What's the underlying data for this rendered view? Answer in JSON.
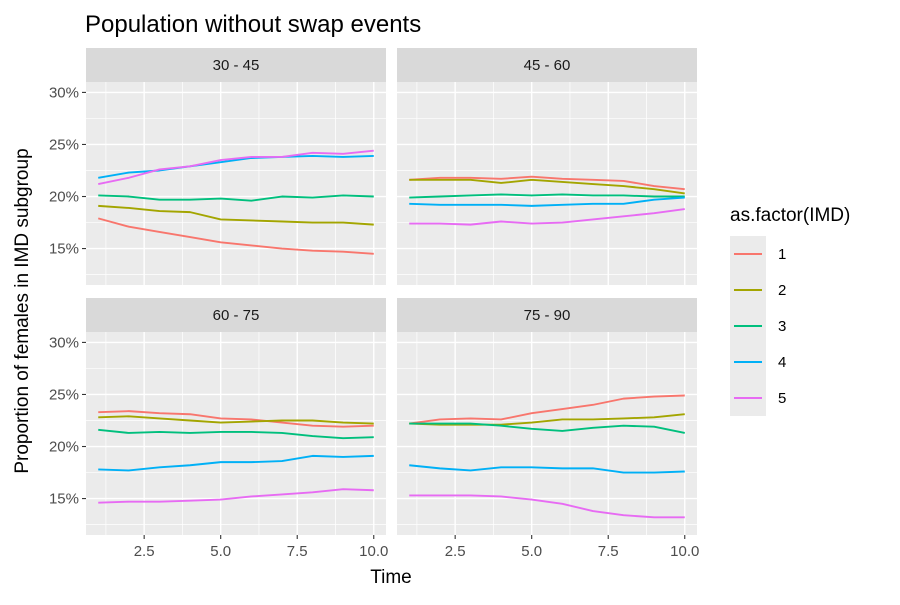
{
  "chart_data": {
    "type": "line",
    "title": "Population without swap events",
    "xlabel": "Time",
    "ylabel": "Proportion of females in IMD subgroup",
    "xlim": [
      0.6,
      10.4
    ],
    "ylim": [
      0.115,
      0.31
    ],
    "x_ticks": [
      2.5,
      5.0,
      7.5,
      10.0
    ],
    "x_tick_labels": [
      "2.5",
      "5.0",
      "7.5",
      "10.0"
    ],
    "y_ticks": [
      0.15,
      0.2,
      0.25,
      0.3
    ],
    "y_tick_labels": [
      "15%",
      "20%",
      "25%",
      "30%"
    ],
    "grid": true,
    "legend": {
      "title": "as.factor(IMD)",
      "position": "right",
      "entries": [
        {
          "label": "1",
          "color": "#F8766D"
        },
        {
          "label": "2",
          "color": "#A3A500"
        },
        {
          "label": "3",
          "color": "#00BF7D"
        },
        {
          "label": "4",
          "color": "#00B0F6"
        },
        {
          "label": "5",
          "color": "#E76BF3"
        }
      ]
    },
    "x": [
      1,
      2,
      3,
      4,
      5,
      6,
      7,
      8,
      9,
      10
    ],
    "panels": [
      {
        "label": "30 - 45",
        "series": [
          {
            "name": "1",
            "values": [
              0.179,
              0.171,
              0.166,
              0.161,
              0.156,
              0.153,
              0.15,
              0.148,
              0.147,
              0.145
            ]
          },
          {
            "name": "2",
            "values": [
              0.191,
              0.189,
              0.186,
              0.185,
              0.178,
              0.177,
              0.176,
              0.175,
              0.175,
              0.173
            ]
          },
          {
            "name": "3",
            "values": [
              0.201,
              0.2,
              0.197,
              0.197,
              0.198,
              0.196,
              0.2,
              0.199,
              0.201,
              0.2
            ]
          },
          {
            "name": "4",
            "values": [
              0.218,
              0.223,
              0.225,
              0.229,
              0.233,
              0.237,
              0.238,
              0.239,
              0.238,
              0.239
            ]
          },
          {
            "name": "5",
            "values": [
              0.212,
              0.218,
              0.226,
              0.229,
              0.235,
              0.238,
              0.238,
              0.242,
              0.241,
              0.244
            ]
          }
        ]
      },
      {
        "label": "45 - 60",
        "series": [
          {
            "name": "1",
            "values": [
              0.216,
              0.218,
              0.218,
              0.217,
              0.219,
              0.217,
              0.216,
              0.215,
              0.21,
              0.207
            ]
          },
          {
            "name": "2",
            "values": [
              0.216,
              0.216,
              0.216,
              0.213,
              0.216,
              0.214,
              0.212,
              0.21,
              0.207,
              0.203
            ]
          },
          {
            "name": "3",
            "values": [
              0.199,
              0.2,
              0.201,
              0.202,
              0.201,
              0.202,
              0.201,
              0.201,
              0.2,
              0.2
            ]
          },
          {
            "name": "4",
            "values": [
              0.193,
              0.192,
              0.192,
              0.192,
              0.191,
              0.192,
              0.193,
              0.193,
              0.197,
              0.199
            ]
          },
          {
            "name": "5",
            "values": [
              0.174,
              0.174,
              0.173,
              0.176,
              0.174,
              0.175,
              0.178,
              0.181,
              0.184,
              0.188
            ]
          }
        ]
      },
      {
        "label": "60 - 75",
        "series": [
          {
            "name": "1",
            "values": [
              0.233,
              0.234,
              0.232,
              0.231,
              0.227,
              0.226,
              0.223,
              0.22,
              0.219,
              0.22
            ]
          },
          {
            "name": "2",
            "values": [
              0.228,
              0.229,
              0.227,
              0.225,
              0.223,
              0.224,
              0.225,
              0.225,
              0.223,
              0.222
            ]
          },
          {
            "name": "3",
            "values": [
              0.216,
              0.213,
              0.214,
              0.213,
              0.214,
              0.214,
              0.213,
              0.21,
              0.208,
              0.209
            ]
          },
          {
            "name": "4",
            "values": [
              0.178,
              0.177,
              0.18,
              0.182,
              0.185,
              0.185,
              0.186,
              0.191,
              0.19,
              0.191
            ]
          },
          {
            "name": "5",
            "values": [
              0.146,
              0.147,
              0.147,
              0.148,
              0.149,
              0.152,
              0.154,
              0.156,
              0.159,
              0.158
            ]
          }
        ]
      },
      {
        "label": "75 - 90",
        "series": [
          {
            "name": "1",
            "values": [
              0.222,
              0.226,
              0.227,
              0.226,
              0.232,
              0.236,
              0.24,
              0.246,
              0.248,
              0.249
            ]
          },
          {
            "name": "2",
            "values": [
              0.222,
              0.221,
              0.221,
              0.221,
              0.223,
              0.226,
              0.226,
              0.227,
              0.228,
              0.231
            ]
          },
          {
            "name": "3",
            "values": [
              0.222,
              0.222,
              0.222,
              0.22,
              0.217,
              0.215,
              0.218,
              0.22,
              0.219,
              0.213
            ]
          },
          {
            "name": "4",
            "values": [
              0.182,
              0.179,
              0.177,
              0.18,
              0.18,
              0.179,
              0.179,
              0.175,
              0.175,
              0.176
            ]
          },
          {
            "name": "5",
            "values": [
              0.153,
              0.153,
              0.153,
              0.152,
              0.149,
              0.145,
              0.138,
              0.134,
              0.132,
              0.132
            ]
          }
        ]
      }
    ]
  }
}
